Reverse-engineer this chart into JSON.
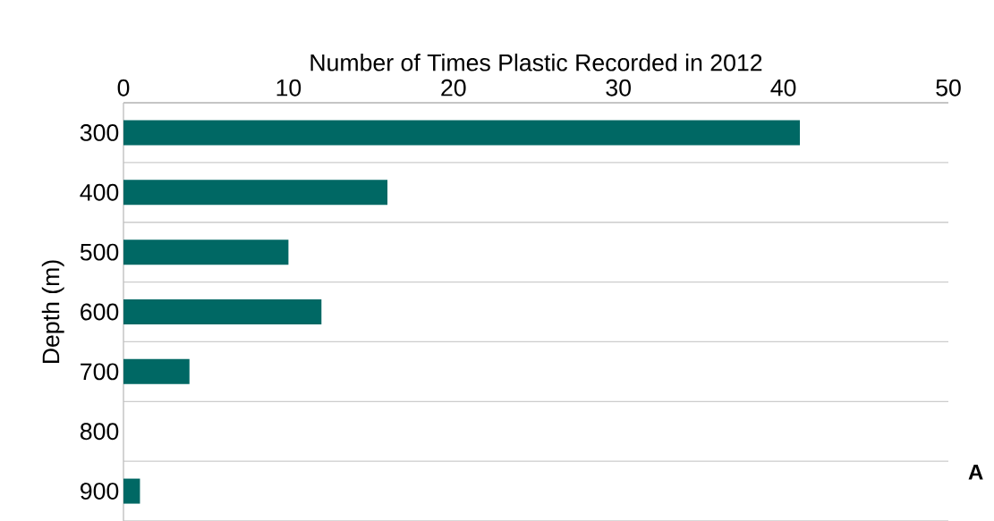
{
  "chart_data": {
    "type": "bar",
    "orientation": "horizontal",
    "xlabel": "Number of Times Plastic Recorded in 2012",
    "ylabel": "Depth (m)",
    "categories": [
      "300",
      "400",
      "500",
      "600",
      "700",
      "800",
      "900"
    ],
    "values": [
      41,
      16,
      10,
      12,
      4,
      0,
      1
    ],
    "color": "#006864",
    "xlim": [
      0,
      50
    ],
    "xticks": [
      0,
      10,
      20,
      30,
      40,
      50
    ],
    "grid": "y",
    "annotations": [
      "A"
    ]
  }
}
